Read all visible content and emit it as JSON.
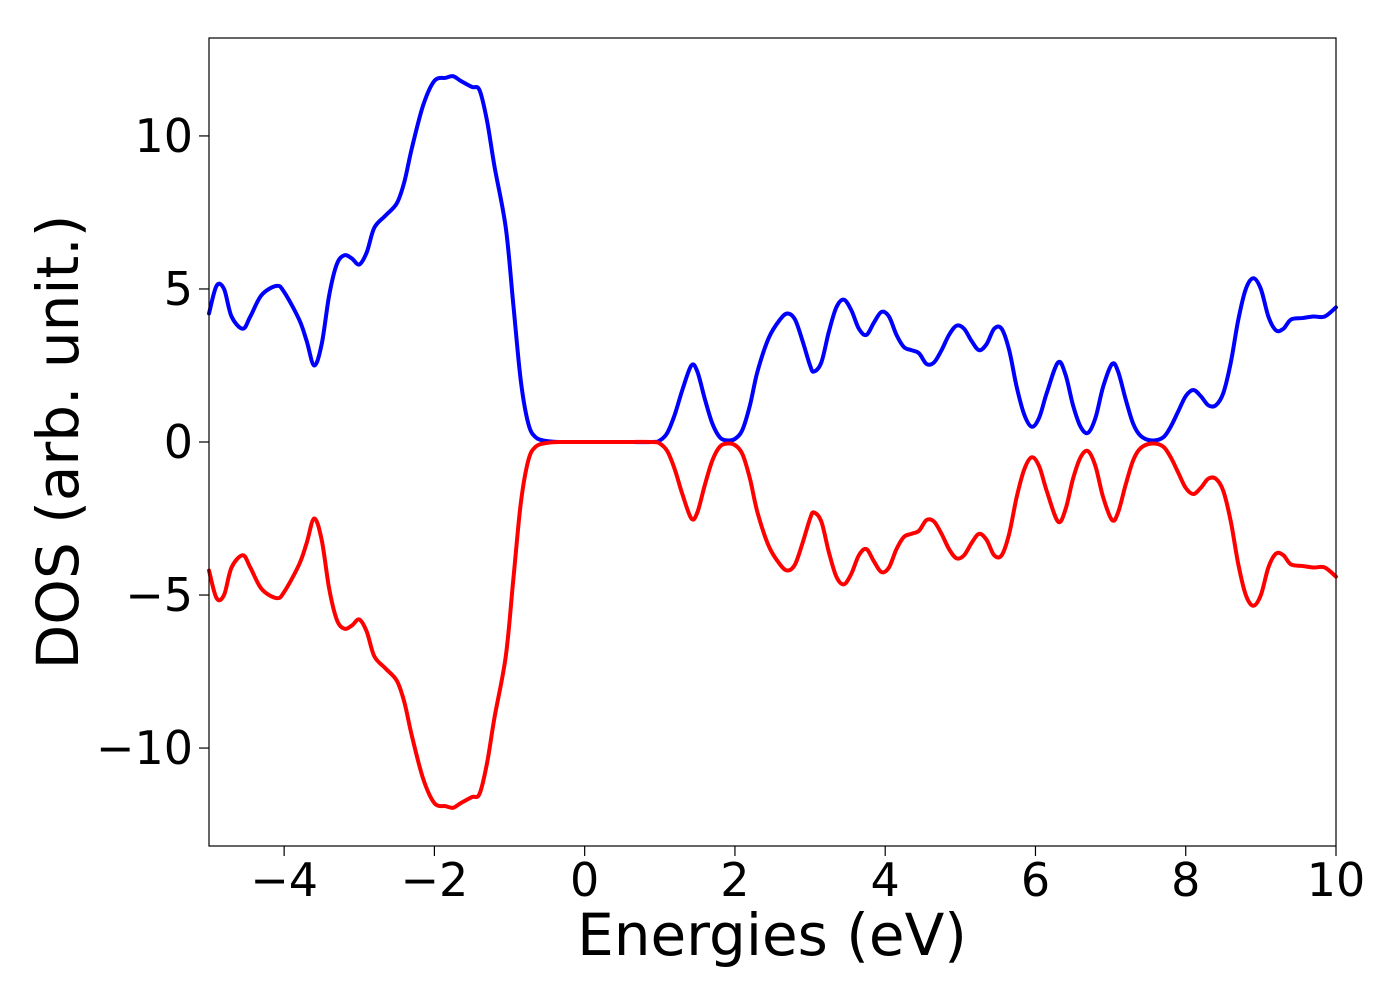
{
  "chart_data": {
    "type": "line",
    "title": "",
    "xlabel": "Energies (eV)",
    "ylabel": "DOS (arb. unit.)",
    "xlim": [
      -5,
      10
    ],
    "ylim": [
      -13.2,
      13.2
    ],
    "grid": false,
    "legend": "none",
    "x_ticks": [
      {
        "value": -4,
        "label": "−4"
      },
      {
        "value": -2,
        "label": "−2"
      },
      {
        "value": 0,
        "label": "0"
      },
      {
        "value": 2,
        "label": "2"
      },
      {
        "value": 4,
        "label": "4"
      },
      {
        "value": 6,
        "label": "6"
      },
      {
        "value": 8,
        "label": "8"
      },
      {
        "value": 10,
        "label": "10"
      }
    ],
    "y_ticks": [
      {
        "value": -10,
        "label": "−10"
      },
      {
        "value": -5,
        "label": "−5"
      },
      {
        "value": 0,
        "label": "0"
      },
      {
        "value": 5,
        "label": "5"
      },
      {
        "value": 10,
        "label": "10"
      }
    ],
    "series": [
      {
        "color": "#0000ff",
        "points": [
          [
            -5.0,
            4.2
          ],
          [
            -4.9,
            5.1
          ],
          [
            -4.8,
            5.0
          ],
          [
            -4.7,
            4.1
          ],
          [
            -4.55,
            3.7
          ],
          [
            -4.45,
            4.1
          ],
          [
            -4.3,
            4.8
          ],
          [
            -4.1,
            5.1
          ],
          [
            -4.0,
            4.9
          ],
          [
            -3.8,
            4.0
          ],
          [
            -3.7,
            3.3
          ],
          [
            -3.6,
            2.5
          ],
          [
            -3.5,
            3.2
          ],
          [
            -3.4,
            4.8
          ],
          [
            -3.3,
            5.8
          ],
          [
            -3.2,
            6.1
          ],
          [
            -3.1,
            6.0
          ],
          [
            -3.0,
            5.8
          ],
          [
            -2.9,
            6.2
          ],
          [
            -2.8,
            7.0
          ],
          [
            -2.65,
            7.4
          ],
          [
            -2.5,
            7.8
          ],
          [
            -2.4,
            8.5
          ],
          [
            -2.3,
            9.6
          ],
          [
            -2.15,
            11.0
          ],
          [
            -2.0,
            11.8
          ],
          [
            -1.85,
            11.9
          ],
          [
            -1.75,
            11.95
          ],
          [
            -1.65,
            11.8
          ],
          [
            -1.5,
            11.6
          ],
          [
            -1.4,
            11.5
          ],
          [
            -1.3,
            10.5
          ],
          [
            -1.2,
            9.0
          ],
          [
            -1.05,
            7.0
          ],
          [
            -0.95,
            4.5
          ],
          [
            -0.85,
            2.0
          ],
          [
            -0.75,
            0.6
          ],
          [
            -0.65,
            0.15
          ],
          [
            -0.5,
            0.03
          ],
          [
            -0.3,
            0.0
          ],
          [
            0.0,
            0.0
          ],
          [
            0.5,
            0.0
          ],
          [
            0.9,
            0.0
          ],
          [
            1.0,
            0.05
          ],
          [
            1.1,
            0.3
          ],
          [
            1.2,
            0.9
          ],
          [
            1.3,
            1.7
          ],
          [
            1.42,
            2.5
          ],
          [
            1.5,
            2.3
          ],
          [
            1.6,
            1.4
          ],
          [
            1.7,
            0.6
          ],
          [
            1.8,
            0.15
          ],
          [
            1.9,
            0.05
          ],
          [
            2.0,
            0.1
          ],
          [
            2.1,
            0.4
          ],
          [
            2.2,
            1.2
          ],
          [
            2.3,
            2.3
          ],
          [
            2.45,
            3.4
          ],
          [
            2.6,
            4.0
          ],
          [
            2.7,
            4.2
          ],
          [
            2.8,
            4.0
          ],
          [
            2.9,
            3.3
          ],
          [
            3.0,
            2.5
          ],
          [
            3.05,
            2.3
          ],
          [
            3.15,
            2.6
          ],
          [
            3.25,
            3.6
          ],
          [
            3.35,
            4.4
          ],
          [
            3.45,
            4.65
          ],
          [
            3.55,
            4.3
          ],
          [
            3.65,
            3.7
          ],
          [
            3.75,
            3.5
          ],
          [
            3.85,
            3.9
          ],
          [
            3.95,
            4.25
          ],
          [
            4.05,
            4.1
          ],
          [
            4.15,
            3.5
          ],
          [
            4.25,
            3.1
          ],
          [
            4.35,
            3.0
          ],
          [
            4.45,
            2.9
          ],
          [
            4.55,
            2.55
          ],
          [
            4.65,
            2.6
          ],
          [
            4.75,
            3.0
          ],
          [
            4.85,
            3.5
          ],
          [
            4.95,
            3.8
          ],
          [
            5.05,
            3.7
          ],
          [
            5.15,
            3.3
          ],
          [
            5.25,
            3.0
          ],
          [
            5.35,
            3.2
          ],
          [
            5.45,
            3.7
          ],
          [
            5.55,
            3.7
          ],
          [
            5.65,
            3.0
          ],
          [
            5.75,
            1.8
          ],
          [
            5.85,
            0.9
          ],
          [
            5.95,
            0.5
          ],
          [
            6.05,
            0.8
          ],
          [
            6.15,
            1.6
          ],
          [
            6.3,
            2.6
          ],
          [
            6.4,
            2.2
          ],
          [
            6.5,
            1.2
          ],
          [
            6.6,
            0.5
          ],
          [
            6.7,
            0.3
          ],
          [
            6.8,
            0.8
          ],
          [
            6.9,
            1.8
          ],
          [
            7.02,
            2.55
          ],
          [
            7.1,
            2.3
          ],
          [
            7.2,
            1.4
          ],
          [
            7.3,
            0.6
          ],
          [
            7.4,
            0.2
          ],
          [
            7.55,
            0.05
          ],
          [
            7.7,
            0.15
          ],
          [
            7.8,
            0.5
          ],
          [
            7.9,
            1.0
          ],
          [
            8.0,
            1.5
          ],
          [
            8.1,
            1.7
          ],
          [
            8.2,
            1.5
          ],
          [
            8.3,
            1.2
          ],
          [
            8.4,
            1.2
          ],
          [
            8.5,
            1.6
          ],
          [
            8.6,
            2.6
          ],
          [
            8.7,
            4.0
          ],
          [
            8.8,
            5.0
          ],
          [
            8.9,
            5.35
          ],
          [
            9.0,
            5.0
          ],
          [
            9.1,
            4.1
          ],
          [
            9.2,
            3.65
          ],
          [
            9.3,
            3.7
          ],
          [
            9.4,
            4.0
          ],
          [
            9.55,
            4.05
          ],
          [
            9.7,
            4.1
          ],
          [
            9.85,
            4.1
          ],
          [
            10.0,
            4.4
          ]
        ]
      },
      {
        "color": "#ff0000",
        "points": [
          [
            -5.0,
            -4.2
          ],
          [
            -4.9,
            -5.1
          ],
          [
            -4.8,
            -5.0
          ],
          [
            -4.7,
            -4.1
          ],
          [
            -4.55,
            -3.7
          ],
          [
            -4.45,
            -4.1
          ],
          [
            -4.3,
            -4.8
          ],
          [
            -4.1,
            -5.1
          ],
          [
            -4.0,
            -4.9
          ],
          [
            -3.8,
            -4.0
          ],
          [
            -3.7,
            -3.3
          ],
          [
            -3.6,
            -2.5
          ],
          [
            -3.5,
            -3.2
          ],
          [
            -3.4,
            -4.8
          ],
          [
            -3.3,
            -5.8
          ],
          [
            -3.2,
            -6.1
          ],
          [
            -3.1,
            -6.0
          ],
          [
            -3.0,
            -5.8
          ],
          [
            -2.9,
            -6.2
          ],
          [
            -2.8,
            -7.0
          ],
          [
            -2.65,
            -7.4
          ],
          [
            -2.5,
            -7.8
          ],
          [
            -2.4,
            -8.5
          ],
          [
            -2.3,
            -9.6
          ],
          [
            -2.15,
            -11.0
          ],
          [
            -2.0,
            -11.8
          ],
          [
            -1.85,
            -11.9
          ],
          [
            -1.75,
            -11.95
          ],
          [
            -1.65,
            -11.8
          ],
          [
            -1.5,
            -11.6
          ],
          [
            -1.4,
            -11.5
          ],
          [
            -1.3,
            -10.5
          ],
          [
            -1.2,
            -9.0
          ],
          [
            -1.05,
            -7.0
          ],
          [
            -0.95,
            -4.5
          ],
          [
            -0.85,
            -2.0
          ],
          [
            -0.75,
            -0.6
          ],
          [
            -0.65,
            -0.15
          ],
          [
            -0.5,
            -0.03
          ],
          [
            -0.3,
            0.0
          ],
          [
            0.0,
            0.0
          ],
          [
            0.5,
            0.0
          ],
          [
            0.9,
            0.0
          ],
          [
            1.0,
            -0.05
          ],
          [
            1.1,
            -0.3
          ],
          [
            1.2,
            -0.9
          ],
          [
            1.3,
            -1.7
          ],
          [
            1.42,
            -2.5
          ],
          [
            1.5,
            -2.3
          ],
          [
            1.6,
            -1.4
          ],
          [
            1.7,
            -0.6
          ],
          [
            1.8,
            -0.15
          ],
          [
            1.9,
            -0.05
          ],
          [
            2.0,
            -0.1
          ],
          [
            2.1,
            -0.4
          ],
          [
            2.2,
            -1.2
          ],
          [
            2.3,
            -2.3
          ],
          [
            2.45,
            -3.4
          ],
          [
            2.6,
            -4.0
          ],
          [
            2.7,
            -4.2
          ],
          [
            2.8,
            -4.0
          ],
          [
            2.9,
            -3.3
          ],
          [
            3.0,
            -2.5
          ],
          [
            3.05,
            -2.3
          ],
          [
            3.15,
            -2.6
          ],
          [
            3.25,
            -3.6
          ],
          [
            3.35,
            -4.4
          ],
          [
            3.45,
            -4.65
          ],
          [
            3.55,
            -4.3
          ],
          [
            3.65,
            -3.7
          ],
          [
            3.75,
            -3.5
          ],
          [
            3.85,
            -3.9
          ],
          [
            3.95,
            -4.25
          ],
          [
            4.05,
            -4.1
          ],
          [
            4.15,
            -3.5
          ],
          [
            4.25,
            -3.1
          ],
          [
            4.35,
            -3.0
          ],
          [
            4.45,
            -2.9
          ],
          [
            4.55,
            -2.55
          ],
          [
            4.65,
            -2.6
          ],
          [
            4.75,
            -3.0
          ],
          [
            4.85,
            -3.5
          ],
          [
            4.95,
            -3.8
          ],
          [
            5.05,
            -3.7
          ],
          [
            5.15,
            -3.3
          ],
          [
            5.25,
            -3.0
          ],
          [
            5.35,
            -3.2
          ],
          [
            5.45,
            -3.7
          ],
          [
            5.55,
            -3.7
          ],
          [
            5.65,
            -3.0
          ],
          [
            5.75,
            -1.8
          ],
          [
            5.85,
            -0.9
          ],
          [
            5.95,
            -0.5
          ],
          [
            6.05,
            -0.8
          ],
          [
            6.15,
            -1.6
          ],
          [
            6.3,
            -2.6
          ],
          [
            6.4,
            -2.2
          ],
          [
            6.5,
            -1.2
          ],
          [
            6.6,
            -0.5
          ],
          [
            6.7,
            -0.3
          ],
          [
            6.8,
            -0.8
          ],
          [
            6.9,
            -1.8
          ],
          [
            7.02,
            -2.55
          ],
          [
            7.1,
            -2.3
          ],
          [
            7.2,
            -1.4
          ],
          [
            7.3,
            -0.6
          ],
          [
            7.4,
            -0.2
          ],
          [
            7.55,
            -0.05
          ],
          [
            7.7,
            -0.15
          ],
          [
            7.8,
            -0.5
          ],
          [
            7.9,
            -1.0
          ],
          [
            8.0,
            -1.5
          ],
          [
            8.1,
            -1.7
          ],
          [
            8.2,
            -1.5
          ],
          [
            8.3,
            -1.2
          ],
          [
            8.4,
            -1.2
          ],
          [
            8.5,
            -1.6
          ],
          [
            8.6,
            -2.6
          ],
          [
            8.7,
            -4.0
          ],
          [
            8.8,
            -5.0
          ],
          [
            8.9,
            -5.35
          ],
          [
            9.0,
            -5.0
          ],
          [
            9.1,
            -4.1
          ],
          [
            9.2,
            -3.65
          ],
          [
            9.3,
            -3.7
          ],
          [
            9.4,
            -4.0
          ],
          [
            9.55,
            -4.05
          ],
          [
            9.7,
            -4.1
          ],
          [
            9.85,
            -4.1
          ],
          [
            10.0,
            -4.4
          ]
        ]
      }
    ]
  }
}
